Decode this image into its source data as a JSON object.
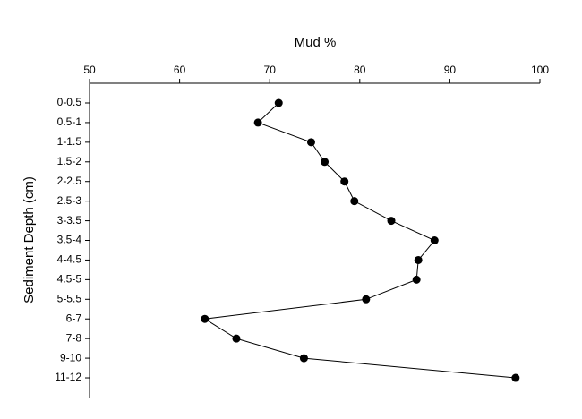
{
  "chart_data": {
    "type": "line",
    "orientation": "horizontal",
    "x_label": "Mud %",
    "y_label": "Sediment Depth (cm)",
    "categories": [
      "0-0.5",
      "0.5-1",
      "1-1.5",
      "1.5-2",
      "2-2.5",
      "2.5-3",
      "3-3.5",
      "3.5-4",
      "4-4.5",
      "4.5-5",
      "5-5.5",
      "6-7",
      "7-8",
      "9-10",
      "11-12"
    ],
    "series": [
      {
        "name": "Mud %",
        "color": "#000000",
        "values": [
          71.0,
          68.7,
          74.6,
          76.1,
          78.3,
          79.4,
          83.5,
          88.3,
          86.5,
          86.3,
          80.7,
          62.8,
          66.3,
          73.8,
          97.3
        ]
      }
    ],
    "xlim": [
      50,
      100
    ],
    "xticks": [
      50,
      60,
      70,
      80,
      90,
      100
    ],
    "x_axis_position": "top",
    "grid": false
  }
}
